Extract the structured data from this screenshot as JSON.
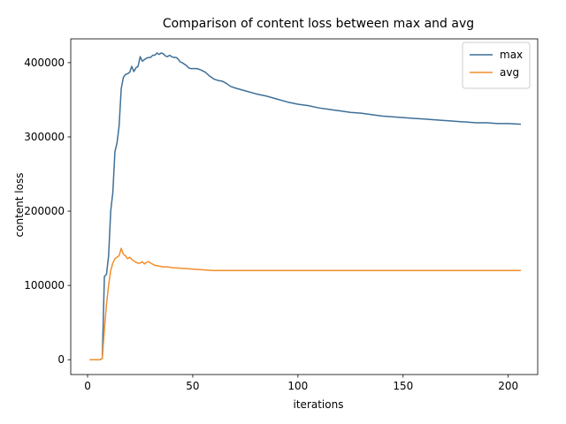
{
  "chart_data": {
    "type": "line",
    "title": "Comparison of content loss between max and avg",
    "xlabel": "iterations",
    "ylabel": "content loss",
    "xlim": [
      -8,
      214
    ],
    "ylim": [
      -20000,
      432000
    ],
    "xticks": [
      0,
      50,
      100,
      150,
      200
    ],
    "yticks": [
      0,
      100000,
      200000,
      300000,
      400000
    ],
    "grid": false,
    "legend": "top-right",
    "series": [
      {
        "name": "max",
        "color": "#3f6f97",
        "x": [
          1,
          2,
          3,
          4,
          5,
          6,
          7,
          8,
          9,
          10,
          11,
          12,
          13,
          14,
          15,
          16,
          17,
          18,
          19,
          20,
          21,
          22,
          23,
          24,
          25,
          26,
          27,
          28,
          29,
          30,
          31,
          32,
          33,
          34,
          35,
          36,
          37,
          38,
          39,
          40,
          41,
          42,
          43,
          44,
          45,
          46,
          47,
          48,
          49,
          50,
          52,
          54,
          56,
          58,
          60,
          62,
          64,
          66,
          68,
          70,
          75,
          80,
          85,
          90,
          95,
          100,
          105,
          110,
          115,
          120,
          125,
          130,
          135,
          140,
          145,
          150,
          155,
          160,
          165,
          170,
          175,
          180,
          185,
          190,
          195,
          200,
          206
        ],
        "y": [
          0,
          0,
          0,
          0,
          0,
          0,
          2000,
          112000,
          115000,
          140000,
          200000,
          225000,
          280000,
          292000,
          315000,
          365000,
          380000,
          384000,
          385000,
          387000,
          395000,
          388000,
          393000,
          395000,
          408000,
          402000,
          404000,
          406000,
          407000,
          407000,
          410000,
          410000,
          413000,
          411000,
          413000,
          412000,
          409000,
          408000,
          410000,
          408000,
          407000,
          407000,
          405000,
          401000,
          400000,
          398000,
          396000,
          393000,
          392000,
          392000,
          392000,
          390000,
          387000,
          382000,
          378000,
          376000,
          375000,
          372000,
          368000,
          366000,
          362000,
          358000,
          355000,
          351000,
          347000,
          344000,
          342000,
          339000,
          337000,
          335000,
          333000,
          332000,
          330000,
          328000,
          327000,
          326000,
          325000,
          324000,
          323000,
          322000,
          321000,
          320000,
          319000,
          319000,
          318000,
          318000,
          317000
        ]
      },
      {
        "name": "avg",
        "color": "#f28e2b",
        "x": [
          1,
          2,
          3,
          4,
          5,
          6,
          7,
          8,
          9,
          10,
          11,
          12,
          13,
          14,
          15,
          16,
          17,
          18,
          19,
          20,
          21,
          22,
          23,
          24,
          25,
          26,
          27,
          28,
          29,
          30,
          32,
          34,
          36,
          38,
          40,
          45,
          50,
          55,
          60,
          65,
          70,
          80,
          90,
          100,
          110,
          120,
          130,
          140,
          150,
          160,
          170,
          180,
          190,
          200,
          206
        ],
        "y": [
          0,
          0,
          0,
          0,
          0,
          0,
          2000,
          40000,
          75000,
          100000,
          120000,
          130000,
          136000,
          138000,
          140000,
          150000,
          142000,
          140000,
          136000,
          138000,
          135000,
          133000,
          131000,
          130000,
          130000,
          132000,
          129000,
          131000,
          132000,
          130000,
          127000,
          126000,
          125000,
          125000,
          124000,
          123000,
          122000,
          121000,
          120000,
          120000,
          120000,
          120000,
          120000,
          120000,
          120000,
          120000,
          120000,
          120000,
          120000,
          120000,
          120000,
          120000,
          120000,
          120000,
          120000
        ]
      }
    ]
  }
}
